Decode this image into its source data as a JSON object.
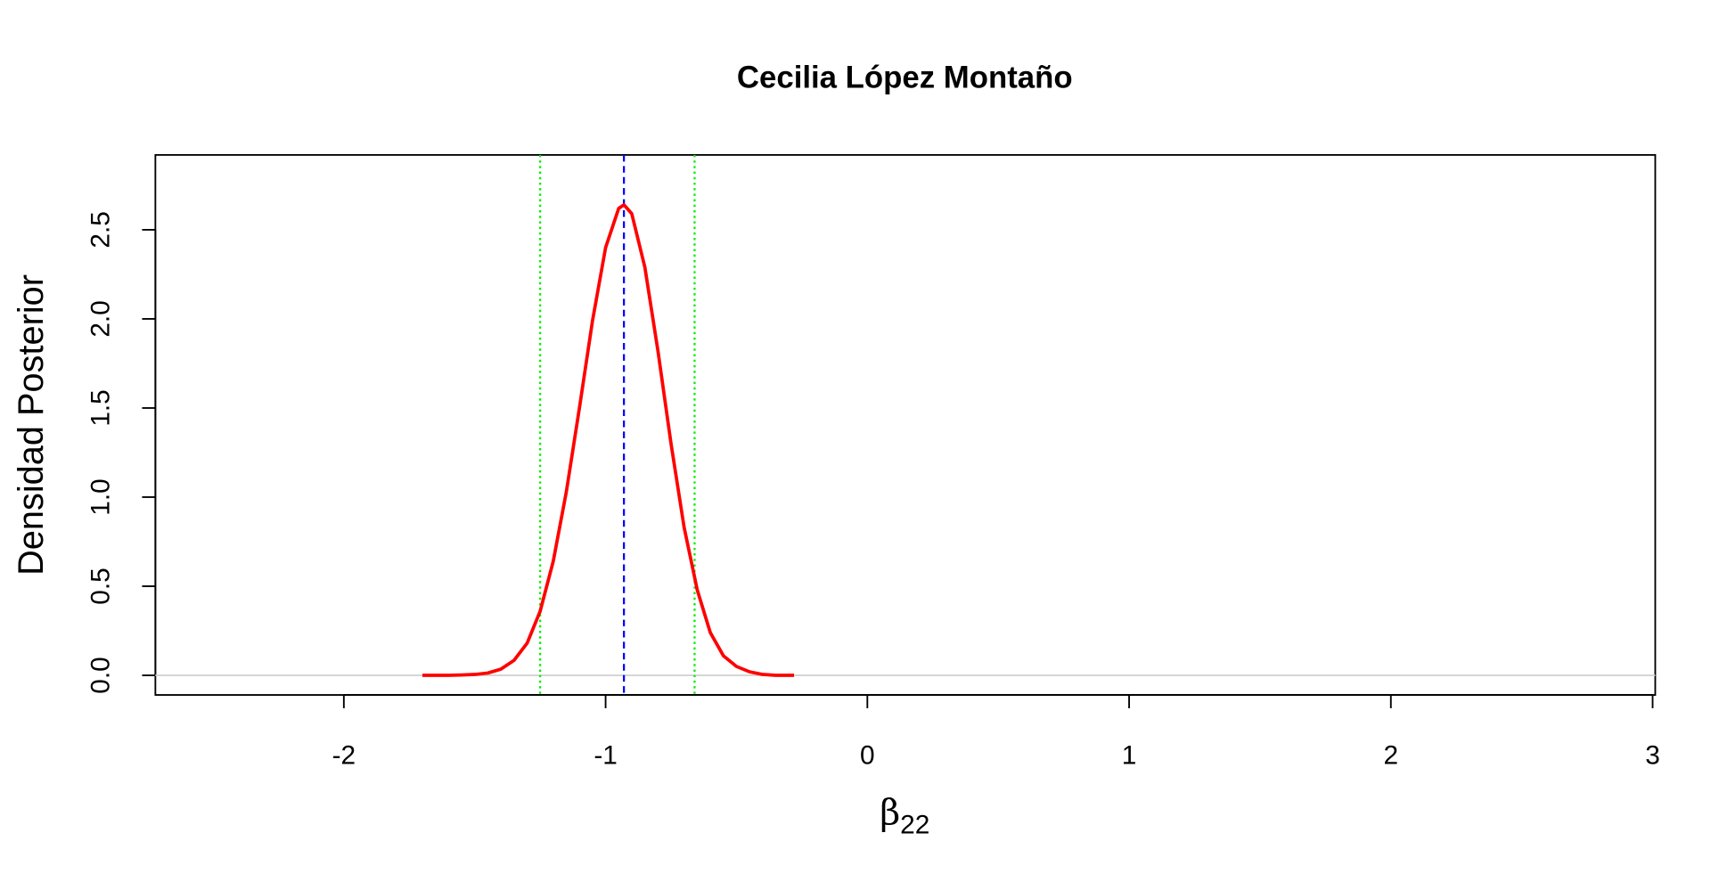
{
  "chart_data": {
    "type": "line",
    "title": "Cecilia López Montaño",
    "x_label_symbol": "β",
    "x_label_subscript": "22",
    "y_label": "Densidad Posterior",
    "x": [
      -1.7,
      -1.65,
      -1.6,
      -1.55,
      -1.5,
      -1.45,
      -1.4,
      -1.35,
      -1.3,
      -1.25,
      -1.2,
      -1.15,
      -1.1,
      -1.05,
      -1.0,
      -0.95,
      -0.93,
      -0.9,
      -0.85,
      -0.8,
      -0.75,
      -0.7,
      -0.65,
      -0.6,
      -0.55,
      -0.5,
      -0.45,
      -0.4,
      -0.35,
      -0.3,
      -0.28
    ],
    "series": [
      {
        "color": "#ff0000",
        "values": [
          0.0,
          0.0,
          0.0,
          0.002,
          0.005,
          0.013,
          0.035,
          0.084,
          0.18,
          0.36,
          0.64,
          1.03,
          1.5,
          1.99,
          2.4,
          2.62,
          2.64,
          2.59,
          2.29,
          1.82,
          1.3,
          0.83,
          0.48,
          0.24,
          0.11,
          0.05,
          0.02,
          0.005,
          0.0,
          0.0,
          0.0
        ]
      }
    ],
    "vlines": [
      {
        "x": -0.93,
        "color": "#0000ff",
        "style": "dashed"
      },
      {
        "x": -1.25,
        "color": "#00ee00",
        "style": "dotted"
      },
      {
        "x": -0.66,
        "color": "#00ee00",
        "style": "dotted"
      }
    ],
    "hline": {
      "y": 0,
      "color": "#d3d3d3"
    },
    "xlim": [
      -2.72,
      3.01
    ],
    "ylim": [
      -0.11,
      2.92
    ],
    "xticks": [
      -2,
      -1,
      0,
      1,
      2,
      3
    ],
    "yticks": [
      {
        "value": 0,
        "label": "0.0"
      },
      {
        "value": 0.5,
        "label": "0.5"
      },
      {
        "value": 1,
        "label": "1.0"
      },
      {
        "value": 1.5,
        "label": "1.5"
      },
      {
        "value": 2,
        "label": "2.0"
      },
      {
        "value": 2.5,
        "label": "2.5"
      }
    ]
  }
}
